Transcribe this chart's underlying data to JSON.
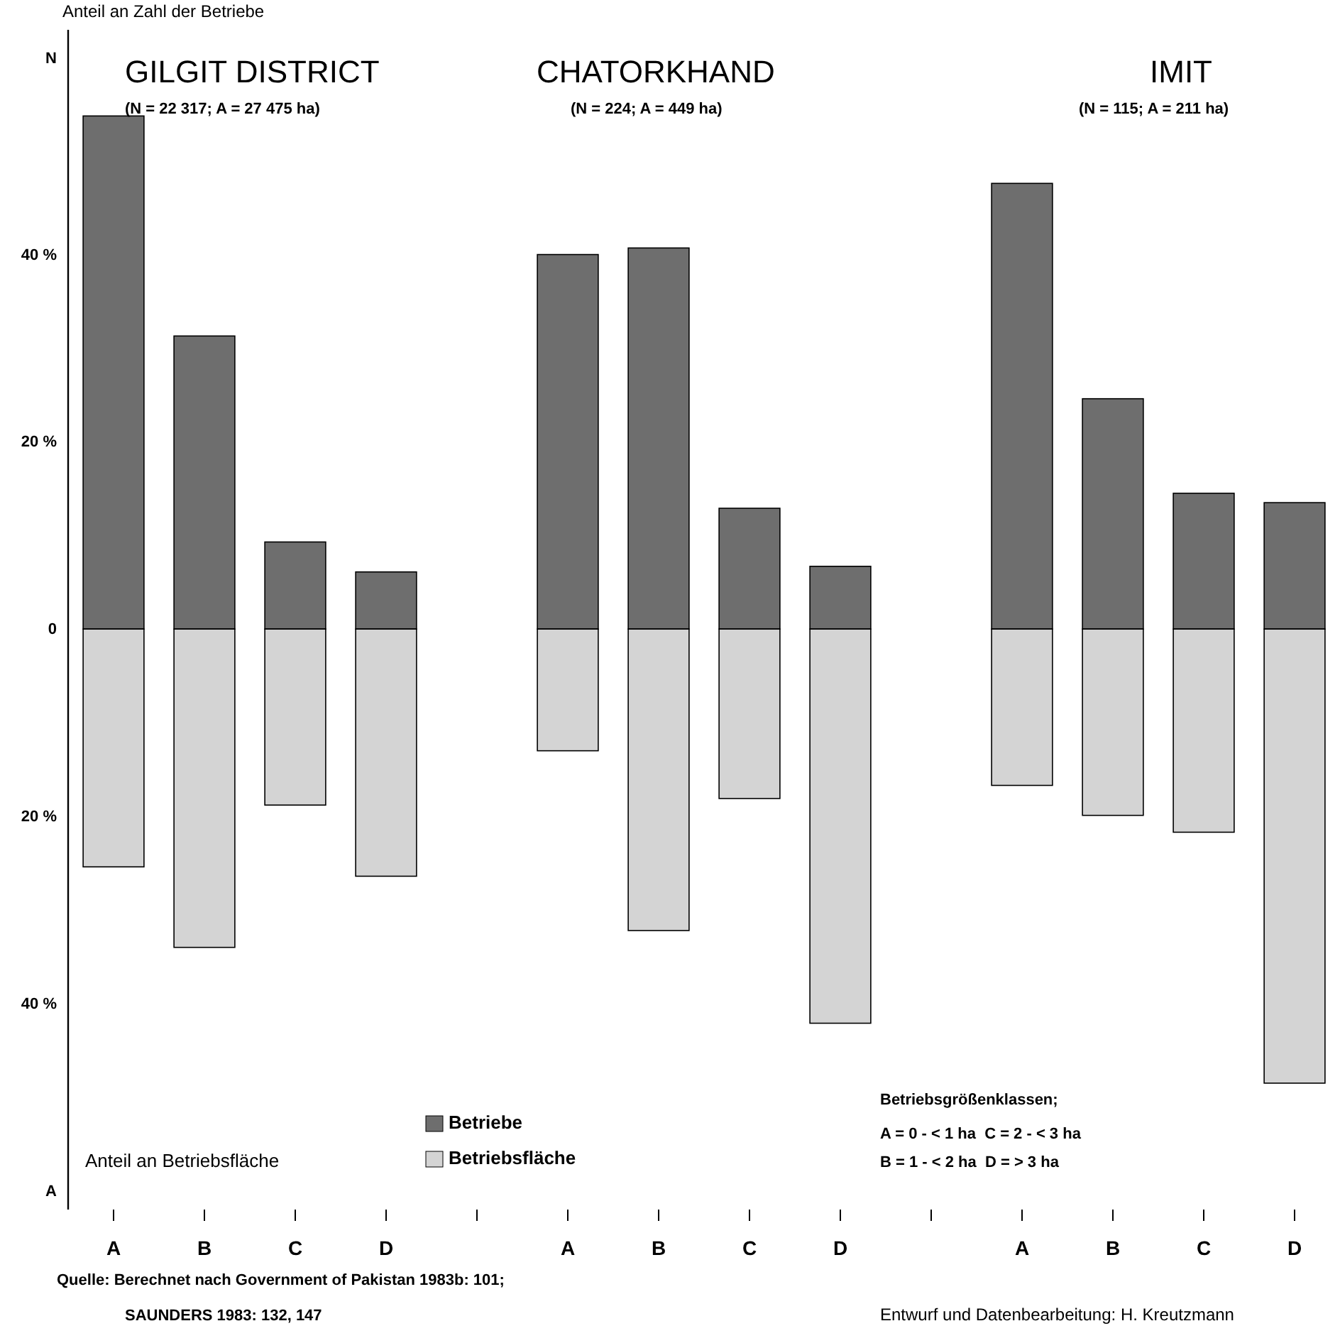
{
  "chart_data": {
    "type": "bar",
    "stacked": true,
    "ylabel": "Anteil an Zahl der Betriebe",
    "categories": [
      "A",
      "B",
      "C",
      "D",
      null,
      "A",
      "B",
      "C",
      "D",
      null,
      "A",
      "B",
      "C",
      "D"
    ],
    "series": [
      {
        "name": "Betriebe",
        "color": "#6e6e6e",
        "values": [
          54.8,
          31.3,
          9.3,
          6.1,
          null,
          40.0,
          40.7,
          12.9,
          6.7,
          null,
          47.6,
          24.6,
          14.5,
          13.5
        ]
      },
      {
        "name": "Betriebsfläche",
        "color": "#d4d4d4",
        "values": [
          -25.4,
          -34.0,
          -18.8,
          -26.4,
          null,
          -13.0,
          -32.2,
          -18.1,
          -42.1,
          null,
          -16.7,
          -19.9,
          -21.7,
          -48.5
        ]
      }
    ],
    "ylim": [
      -62,
      64
    ],
    "yticks": [
      {
        "value": 61,
        "label": "N"
      },
      {
        "value": 40,
        "label": "40 %"
      },
      {
        "value": 20,
        "label": "20 %"
      },
      0,
      {
        "value": -20,
        "label": "20 %"
      },
      {
        "value": -40,
        "label": "40 %"
      },
      {
        "value": -60,
        "label": "A"
      }
    ],
    "grid": false,
    "legend": "bottom",
    "annotations": [
      "GILGIT DISTRICT",
      "(N = 22 317; A = 27 475 ha)",
      "CHATORKHAND",
      "(N = 224; A = 449 ha)",
      "IMIT",
      "(N = 115; A = 211 ha)",
      "Anteil an Betriebsfläche",
      "Betriebsgrößenklassen;",
      "A = 0 - < 1 ha  C = 2 - < 3 ha",
      "B = 1 - < 2 ha  D = > 3 ha",
      "Quelle: Berechnet nach Government of Pakistan 1983b: 101;",
      "SAUNDERS 1983: 132, 147",
      "Entwurf und Datenbearbeitung: H. Kreutzmann"
    ]
  }
}
